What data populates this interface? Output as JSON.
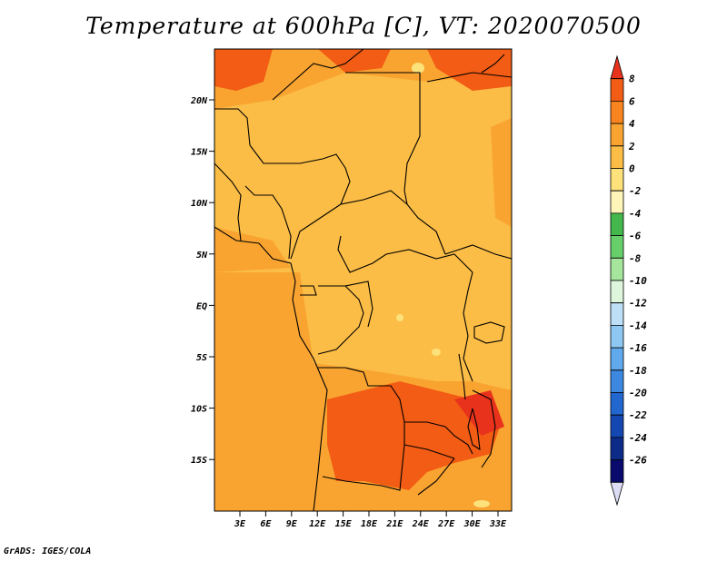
{
  "chart_data": {
    "type": "heatmap",
    "title": "Temperature at 600hPa [C], VT: 2020070500",
    "x_ticks": [
      "3E",
      "6E",
      "9E",
      "12E",
      "15E",
      "18E",
      "21E",
      "24E",
      "27E",
      "30E",
      "33E"
    ],
    "y_ticks": [
      "20N",
      "15N",
      "10N",
      "5N",
      "EQ",
      "5S",
      "10S",
      "15S"
    ],
    "legend_levels": [
      "8",
      "6",
      "4",
      "2",
      "0",
      "-2",
      "-4",
      "-6",
      "-8",
      "-10",
      "-12",
      "-14",
      "-16",
      "-18",
      "-20",
      "-22",
      "-24",
      "-26"
    ],
    "legend_colors": [
      "#e8321c",
      "#f25c14",
      "#f7841e",
      "#f9a431",
      "#fbbd46",
      "#fde17a",
      "#fff5b8",
      "#43b74b",
      "#66cf6a",
      "#a5e59c",
      "#def7dc",
      "#bde0f7",
      "#8fc7f3",
      "#5fa9ec",
      "#3c88e0",
      "#2267d0",
      "#1447b1",
      "#0d2c8a",
      "#0a0a6e",
      "#dcdcf5"
    ],
    "legend_position": "right",
    "grid": false
  },
  "credit": "GrADS: IGES/COLA"
}
